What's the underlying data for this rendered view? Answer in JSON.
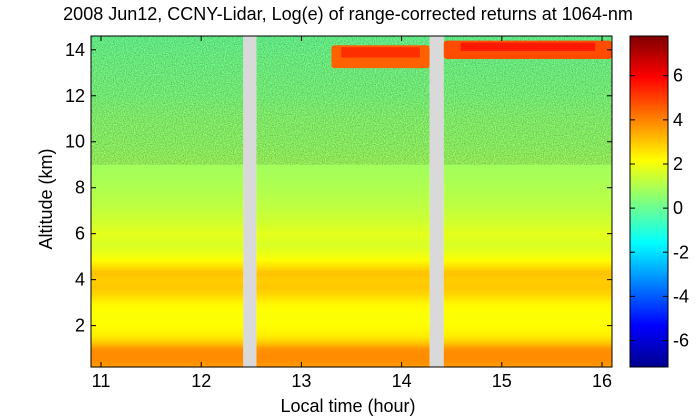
{
  "chart_data": {
    "type": "heatmap",
    "title": "2008 Jun12, CCNY-Lidar, Log(e) of range-corrected returns at 1064-nm",
    "xlabel": "Local time (hour)",
    "ylabel": "Altitude (km)",
    "xlim": [
      10.9,
      16.1
    ],
    "ylim": [
      0.2,
      14.6
    ],
    "xticks": [
      11,
      12,
      13,
      14,
      15,
      16
    ],
    "yticks": [
      2,
      4,
      6,
      8,
      10,
      12,
      14
    ],
    "colorbar": {
      "range": [
        -7.2,
        7.8
      ],
      "ticks": [
        -6,
        -4,
        -2,
        0,
        2,
        4,
        6
      ],
      "colormap": "jet"
    },
    "data_gaps": [
      [
        12.42,
        12.55
      ],
      [
        14.28,
        14.42
      ]
    ],
    "segments": [
      {
        "x": [
          10.9,
          12.42
        ]
      },
      {
        "x": [
          12.55,
          14.28
        ]
      },
      {
        "x": [
          14.42,
          16.1
        ]
      }
    ],
    "altitude_profile": {
      "altitude_km": [
        0.2,
        0.6,
        1.0,
        1.3,
        1.6,
        2.0,
        2.5,
        3.0,
        3.4,
        3.7,
        4.0,
        4.3,
        4.6,
        5.0,
        5.5,
        6.0,
        6.5,
        7.0,
        8.0,
        9.0,
        10.0,
        11.0,
        12.0,
        13.0,
        14.0,
        14.6
      ],
      "log_return": [
        3.6,
        3.9,
        3.8,
        2.9,
        2.4,
        2.2,
        2.1,
        2.3,
        2.8,
        3.0,
        2.9,
        3.1,
        2.6,
        2.0,
        1.6,
        1.8,
        1.5,
        1.3,
        1.0,
        0.8,
        0.6,
        0.5,
        0.3,
        0.2,
        0.1,
        0.0
      ]
    },
    "cloud_layers": [
      {
        "x": [
          13.3,
          14.28
        ],
        "y": [
          13.2,
          14.2
        ],
        "value": 4.5
      },
      {
        "x": [
          14.42,
          16.1
        ],
        "y": [
          13.6,
          14.4
        ],
        "value": 4.8
      }
    ]
  },
  "colors": {
    "background": "#ffffff",
    "gap": "#d9d9d9"
  }
}
